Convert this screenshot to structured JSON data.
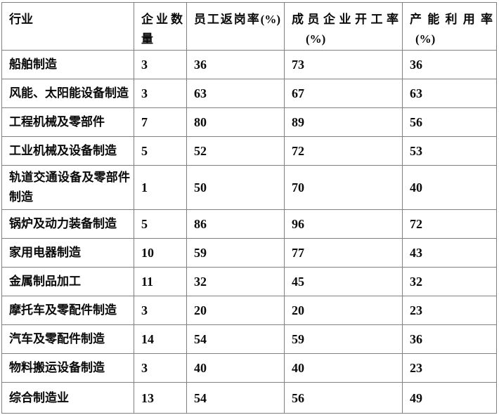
{
  "table": {
    "border_color": "#808080",
    "text_color": "#0a0a0a",
    "columns": [
      {
        "line1": "行业",
        "line2": ""
      },
      {
        "line1": "企业数",
        "line2": "量"
      },
      {
        "line1": "员工返岗率(%)",
        "line2": ""
      },
      {
        "line1": "成员企业开工率",
        "line2": "(%)"
      },
      {
        "line1": "产能利用率",
        "line2": "(%)"
      }
    ],
    "rows": [
      [
        "船舶制造",
        "3",
        "36",
        "73",
        "36"
      ],
      [
        "风能、太阳能设备制造",
        "3",
        "63",
        "67",
        "63"
      ],
      [
        "工程机械及零部件",
        "7",
        "80",
        "89",
        "56"
      ],
      [
        "工业机械及设备制造",
        "5",
        "52",
        "72",
        "53"
      ],
      [
        "轨道交通设备及零部件制造",
        "1",
        "50",
        "70",
        "40"
      ],
      [
        "锅炉及动力装备制造",
        "5",
        "86",
        "96",
        "72"
      ],
      [
        "家用电器制造",
        "10",
        "59",
        "77",
        "43"
      ],
      [
        "金属制品加工",
        "11",
        "32",
        "45",
        "32"
      ],
      [
        "摩托车及零配件制造",
        "3",
        "20",
        "20",
        "23"
      ],
      [
        "汽车及零配件制造",
        "14",
        "54",
        "59",
        "36"
      ],
      [
        "物料搬运设备制造",
        "3",
        "40",
        "40",
        "23"
      ],
      [
        "综合制造业",
        "13",
        "54",
        "56",
        "49"
      ]
    ],
    "tall_row_index": 4,
    "last_row_index": 11
  }
}
